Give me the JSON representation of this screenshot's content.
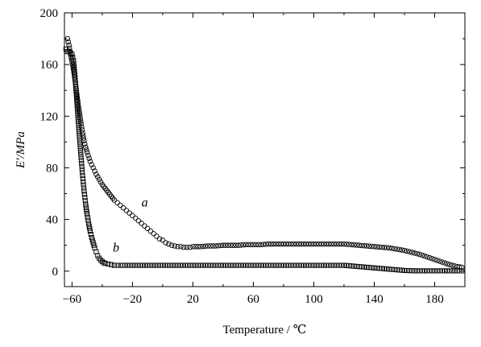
{
  "chart_data": {
    "type": "scatter",
    "xlabel": "Temperature / ℃",
    "ylabel": "E′/MPa",
    "xlim": [
      -65,
      200
    ],
    "ylim": [
      -12,
      200
    ],
    "x_ticks": [
      -60,
      -20,
      20,
      60,
      100,
      140,
      180
    ],
    "y_ticks": [
      0,
      40,
      80,
      120,
      160,
      200
    ],
    "x_tick_labels": [
      "−60",
      "−20",
      "20",
      "60",
      "100",
      "140",
      "180"
    ],
    "y_tick_labels": [
      "0",
      "40",
      "80",
      "120",
      "160",
      "200"
    ],
    "grid": false,
    "legend": "none",
    "series": [
      {
        "name": "a",
        "marker": "circle",
        "points": [
          [
            -63,
            180
          ],
          [
            -62,
            175
          ],
          [
            -61,
            168
          ],
          [
            -60,
            162
          ],
          [
            -59,
            156
          ],
          [
            -58,
            148
          ],
          [
            -57,
            139
          ],
          [
            -56,
            130
          ],
          [
            -55,
            122
          ],
          [
            -54,
            114
          ],
          [
            -53,
            107
          ],
          [
            -52,
            101
          ],
          [
            -51,
            96
          ],
          [
            -50,
            92
          ],
          [
            -48,
            85
          ],
          [
            -46,
            80
          ],
          [
            -44,
            75
          ],
          [
            -42,
            71
          ],
          [
            -40,
            67
          ],
          [
            -38,
            64
          ],
          [
            -36,
            61
          ],
          [
            -34,
            58
          ],
          [
            -32,
            55
          ],
          [
            -30,
            53
          ],
          [
            -28,
            51
          ],
          [
            -26,
            49
          ],
          [
            -24,
            47
          ],
          [
            -22,
            45
          ],
          [
            -20,
            43
          ],
          [
            -18,
            41
          ],
          [
            -16,
            39
          ],
          [
            -14,
            37
          ],
          [
            -12,
            35
          ],
          [
            -10,
            33
          ],
          [
            -8,
            31
          ],
          [
            -6,
            29
          ],
          [
            -4,
            27
          ],
          [
            -2,
            25
          ],
          [
            0,
            24
          ],
          [
            2,
            22
          ],
          [
            4,
            21
          ],
          [
            6,
            20
          ],
          [
            8,
            19.5
          ],
          [
            10,
            19
          ],
          [
            12,
            19
          ],
          [
            14,
            18.5
          ],
          [
            16,
            18.5
          ],
          [
            18,
            18.5
          ],
          [
            20,
            19
          ],
          [
            25,
            19
          ],
          [
            30,
            19.5
          ],
          [
            35,
            19.5
          ],
          [
            40,
            20
          ],
          [
            45,
            20
          ],
          [
            50,
            20
          ],
          [
            55,
            20.5
          ],
          [
            60,
            20.5
          ],
          [
            65,
            20.5
          ],
          [
            70,
            21
          ],
          [
            75,
            21
          ],
          [
            80,
            21
          ],
          [
            85,
            21
          ],
          [
            90,
            21
          ],
          [
            95,
            21
          ],
          [
            100,
            21
          ],
          [
            105,
            21
          ],
          [
            110,
            21
          ],
          [
            115,
            21
          ],
          [
            120,
            21
          ],
          [
            125,
            20.5
          ],
          [
            130,
            20
          ],
          [
            135,
            19.5
          ],
          [
            140,
            19
          ],
          [
            145,
            18.5
          ],
          [
            150,
            18
          ],
          [
            155,
            17
          ],
          [
            160,
            16
          ],
          [
            165,
            14.5
          ],
          [
            170,
            13
          ],
          [
            175,
            11
          ],
          [
            180,
            9
          ],
          [
            185,
            7
          ],
          [
            190,
            5
          ],
          [
            195,
            3.5
          ],
          [
            198,
            3
          ]
        ]
      },
      {
        "name": "b",
        "marker": "square",
        "points": [
          [
            -64,
            172
          ],
          [
            -63,
            170
          ],
          [
            -62,
            170
          ],
          [
            -61,
            169
          ],
          [
            -60,
            168
          ],
          [
            -59,
            163
          ],
          [
            -58,
            150
          ],
          [
            -57,
            135
          ],
          [
            -56,
            118
          ],
          [
            -55,
            103
          ],
          [
            -54,
            88
          ],
          [
            -53,
            74
          ],
          [
            -52,
            62
          ],
          [
            -51,
            52
          ],
          [
            -50,
            44
          ],
          [
            -49,
            37
          ],
          [
            -48,
            31
          ],
          [
            -47,
            26
          ],
          [
            -46,
            22
          ],
          [
            -45,
            18
          ],
          [
            -44,
            15
          ],
          [
            -43,
            12
          ],
          [
            -42,
            10
          ],
          [
            -41,
            8.5
          ],
          [
            -40,
            7.5
          ],
          [
            -39,
            6.5
          ],
          [
            -38,
            6
          ],
          [
            -36,
            5.5
          ],
          [
            -34,
            5
          ],
          [
            -32,
            4.5
          ],
          [
            -30,
            4.5
          ],
          [
            -28,
            4.5
          ],
          [
            -25,
            4.5
          ],
          [
            -20,
            4.5
          ],
          [
            -15,
            4.5
          ],
          [
            -10,
            4.5
          ],
          [
            -5,
            4.5
          ],
          [
            0,
            4.5
          ],
          [
            5,
            4.5
          ],
          [
            10,
            4.5
          ],
          [
            15,
            4.5
          ],
          [
            20,
            4.5
          ],
          [
            25,
            4.5
          ],
          [
            30,
            4.5
          ],
          [
            35,
            4.5
          ],
          [
            40,
            4.5
          ],
          [
            45,
            4.5
          ],
          [
            50,
            4.5
          ],
          [
            55,
            4.5
          ],
          [
            60,
            4.5
          ],
          [
            65,
            4.5
          ],
          [
            70,
            4.5
          ],
          [
            75,
            4.5
          ],
          [
            80,
            4.5
          ],
          [
            85,
            4.5
          ],
          [
            90,
            4.5
          ],
          [
            95,
            4.5
          ],
          [
            100,
            4.5
          ],
          [
            105,
            4.5
          ],
          [
            110,
            4.5
          ],
          [
            115,
            4.5
          ],
          [
            120,
            4.5
          ],
          [
            125,
            4
          ],
          [
            130,
            3.5
          ],
          [
            135,
            3
          ],
          [
            140,
            2.5
          ],
          [
            145,
            2
          ],
          [
            150,
            1.5
          ],
          [
            155,
            1
          ],
          [
            160,
            0.5
          ],
          [
            165,
            0.3
          ],
          [
            170,
            0.2
          ],
          [
            175,
            0.2
          ],
          [
            180,
            0.2
          ],
          [
            185,
            0.2
          ],
          [
            190,
            0.2
          ],
          [
            195,
            0.2
          ],
          [
            198,
            0.2
          ]
        ]
      }
    ],
    "annotations": [
      {
        "text": "a",
        "x": -14,
        "y": 50
      },
      {
        "text": "b",
        "x": -33,
        "y": 15
      }
    ]
  }
}
